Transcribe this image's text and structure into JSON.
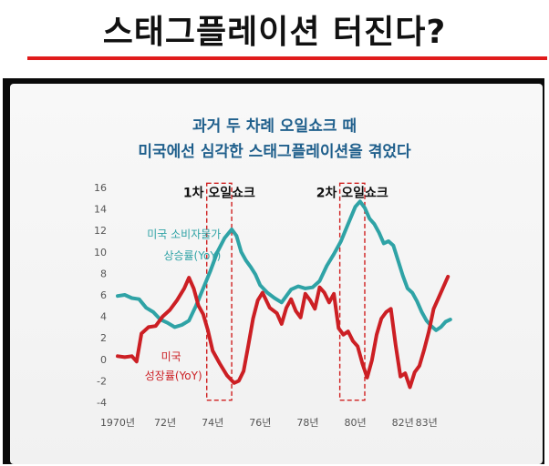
{
  "page": {
    "title": "스태그플레이션 터진다?"
  },
  "colors": {
    "accent_rule": "#e01b1b",
    "cpi_series": "#2fa3a6",
    "gdp_series": "#cc1f24",
    "chart_title": "#1f5f8c",
    "shock_box": "#d02020"
  },
  "chart_data": {
    "type": "line",
    "title_line1": "과거 두 차례 오일쇼크 때",
    "title_line2": "미국에선 심각한 스태그플레이션을 겪었다",
    "xlabel": "",
    "ylabel": "",
    "xlim": [
      1970,
      1984.2
    ],
    "ylim": [
      -4,
      16
    ],
    "yticks": [
      16,
      14,
      12,
      10,
      8,
      6,
      4,
      2,
      0,
      -2,
      -4
    ],
    "xtick_labels": [
      {
        "x": 1970.0,
        "label": "1970년"
      },
      {
        "x": 1972.0,
        "label": "72년"
      },
      {
        "x": 1974.0,
        "label": "74년"
      },
      {
        "x": 1976.0,
        "label": "76년"
      },
      {
        "x": 1978.0,
        "label": "78년"
      },
      {
        "x": 1980.0,
        "label": "80년"
      },
      {
        "x": 1982.0,
        "label": "82년"
      },
      {
        "x": 1983.0,
        "label": "83년"
      }
    ],
    "grid": false,
    "shock_periods": [
      {
        "label": "1차 오일쇼크",
        "x_start": 1973.75,
        "x_end": 1974.8,
        "y_low": -3.8,
        "y_high": 16.4
      },
      {
        "label": "2차 오일쇼크",
        "x_start": 1979.35,
        "x_end": 1980.4,
        "y_low": -3.8,
        "y_high": 16.4
      }
    ],
    "series": [
      {
        "name_line1": "미국 소비자물가",
        "name_line2": "상승률(YoY)",
        "points": [
          [
            1970.0,
            5.9
          ],
          [
            1970.3,
            6.0
          ],
          [
            1970.6,
            5.7
          ],
          [
            1970.9,
            5.6
          ],
          [
            1971.2,
            4.8
          ],
          [
            1971.5,
            4.4
          ],
          [
            1971.8,
            3.7
          ],
          [
            1972.1,
            3.4
          ],
          [
            1972.4,
            3.0
          ],
          [
            1972.7,
            3.2
          ],
          [
            1973.0,
            3.6
          ],
          [
            1973.3,
            5.0
          ],
          [
            1973.6,
            6.6
          ],
          [
            1973.9,
            8.2
          ],
          [
            1974.2,
            10.0
          ],
          [
            1974.5,
            11.3
          ],
          [
            1974.8,
            12.1
          ],
          [
            1975.0,
            11.5
          ],
          [
            1975.2,
            10.0
          ],
          [
            1975.4,
            9.2
          ],
          [
            1975.6,
            8.6
          ],
          [
            1975.8,
            7.9
          ],
          [
            1976.0,
            6.9
          ],
          [
            1976.3,
            6.2
          ],
          [
            1976.6,
            5.7
          ],
          [
            1976.9,
            5.3
          ],
          [
            1977.1,
            5.9
          ],
          [
            1977.3,
            6.5
          ],
          [
            1977.6,
            6.8
          ],
          [
            1977.9,
            6.6
          ],
          [
            1978.2,
            6.7
          ],
          [
            1978.5,
            7.3
          ],
          [
            1978.8,
            8.7
          ],
          [
            1979.1,
            9.8
          ],
          [
            1979.4,
            11.0
          ],
          [
            1979.7,
            12.6
          ],
          [
            1980.0,
            14.2
          ],
          [
            1980.2,
            14.7
          ],
          [
            1980.4,
            14.1
          ],
          [
            1980.6,
            13.1
          ],
          [
            1980.8,
            12.6
          ],
          [
            1981.0,
            11.8
          ],
          [
            1981.2,
            10.8
          ],
          [
            1981.4,
            11.0
          ],
          [
            1981.6,
            10.6
          ],
          [
            1981.8,
            9.2
          ],
          [
            1982.0,
            7.8
          ],
          [
            1982.2,
            6.6
          ],
          [
            1982.4,
            6.2
          ],
          [
            1982.6,
            5.4
          ],
          [
            1982.8,
            4.4
          ],
          [
            1983.0,
            3.6
          ],
          [
            1983.2,
            3.1
          ],
          [
            1983.4,
            2.7
          ],
          [
            1983.6,
            3.0
          ],
          [
            1983.8,
            3.5
          ],
          [
            1984.0,
            3.7
          ]
        ]
      },
      {
        "name_line1": "미국",
        "name_line2": "성장률(YoY)",
        "points": [
          [
            1970.0,
            0.3
          ],
          [
            1970.3,
            0.2
          ],
          [
            1970.6,
            0.3
          ],
          [
            1970.8,
            -0.2
          ],
          [
            1971.0,
            2.4
          ],
          [
            1971.3,
            3.0
          ],
          [
            1971.6,
            3.1
          ],
          [
            1971.9,
            4.0
          ],
          [
            1972.2,
            4.6
          ],
          [
            1972.5,
            5.5
          ],
          [
            1972.8,
            6.6
          ],
          [
            1973.0,
            7.6
          ],
          [
            1973.2,
            6.6
          ],
          [
            1973.4,
            5.0
          ],
          [
            1973.6,
            4.2
          ],
          [
            1973.8,
            2.7
          ],
          [
            1974.0,
            0.8
          ],
          [
            1974.3,
            -0.4
          ],
          [
            1974.6,
            -1.5
          ],
          [
            1974.9,
            -2.2
          ],
          [
            1975.1,
            -2.0
          ],
          [
            1975.3,
            -1.1
          ],
          [
            1975.5,
            1.3
          ],
          [
            1975.7,
            3.8
          ],
          [
            1975.9,
            5.5
          ],
          [
            1976.1,
            6.2
          ],
          [
            1976.4,
            4.8
          ],
          [
            1976.7,
            4.3
          ],
          [
            1976.9,
            3.3
          ],
          [
            1977.1,
            4.8
          ],
          [
            1977.3,
            5.6
          ],
          [
            1977.5,
            4.5
          ],
          [
            1977.7,
            3.9
          ],
          [
            1977.9,
            6.1
          ],
          [
            1978.1,
            5.5
          ],
          [
            1978.3,
            4.7
          ],
          [
            1978.5,
            6.7
          ],
          [
            1978.7,
            6.2
          ],
          [
            1978.9,
            5.3
          ],
          [
            1979.1,
            6.1
          ],
          [
            1979.3,
            2.9
          ],
          [
            1979.5,
            2.3
          ],
          [
            1979.7,
            2.6
          ],
          [
            1979.9,
            1.7
          ],
          [
            1980.1,
            1.2
          ],
          [
            1980.3,
            -0.4
          ],
          [
            1980.5,
            -1.7
          ],
          [
            1980.7,
            -0.1
          ],
          [
            1980.9,
            2.3
          ],
          [
            1981.1,
            3.8
          ],
          [
            1981.3,
            4.4
          ],
          [
            1981.5,
            4.7
          ],
          [
            1981.7,
            1.3
          ],
          [
            1981.9,
            -1.6
          ],
          [
            1982.1,
            -1.3
          ],
          [
            1982.3,
            -2.6
          ],
          [
            1982.5,
            -1.2
          ],
          [
            1982.7,
            -0.6
          ],
          [
            1982.9,
            0.9
          ],
          [
            1983.1,
            2.6
          ],
          [
            1983.3,
            4.7
          ],
          [
            1983.5,
            5.7
          ],
          [
            1983.7,
            6.7
          ],
          [
            1983.9,
            7.7
          ]
        ]
      }
    ]
  }
}
